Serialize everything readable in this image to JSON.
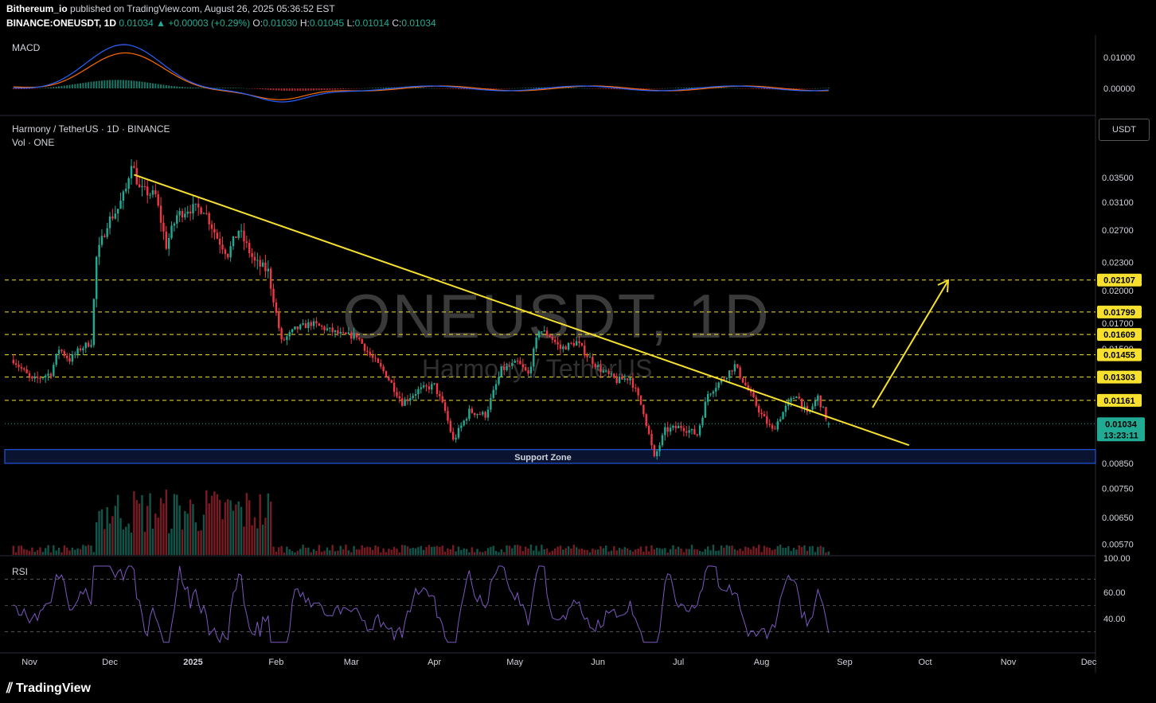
{
  "header": {
    "publisher": "Bithereum_io",
    "published_text": "published on TradingView.com, August 26, 2025 05:36:52 EST",
    "symbol": "BINANCE:ONEUSDT, 1D",
    "last": "0.01034",
    "change": "+0.00003 (+0.29%)",
    "o_label": "O:",
    "o": "0.01030",
    "h_label": "H:",
    "h": "0.01045",
    "l_label": "L:",
    "l": "0.01014",
    "c_label": "C:",
    "c": "0.01034"
  },
  "panes": {
    "macd_label": "MACD",
    "main_title": "Harmony / TetherUS · 1D · BINANCE",
    "vol_label": "Vol · ONE",
    "rsi_label": "RSI",
    "currency": "USDT"
  },
  "watermark": {
    "symbol": "ONEUSDT, 1D",
    "name": "Harmony / TetherUS"
  },
  "annotations": {
    "support_zone": "Support Zone"
  },
  "footer": {
    "brand": "TradingView"
  },
  "colors": {
    "bull": "#22ab94",
    "bear": "#f23645",
    "trendline": "#f7e12e",
    "support_band": "#1e3a8a",
    "macd": "#2962ff",
    "signal": "#ff6d00",
    "rsi": "#7e57c2"
  },
  "chart_data": {
    "type": "candlestick",
    "symbol": "ONEUSDT",
    "interval": "1D",
    "x_ticks": [
      "Nov",
      "Dec",
      "2025",
      "Feb",
      "Mar",
      "Apr",
      "May",
      "Jun",
      "Jul",
      "Aug",
      "Sep",
      "Oct",
      "Nov",
      "Dec"
    ],
    "y_ticks": [
      "0.03500",
      "0.03100",
      "0.02700",
      "0.02300",
      "0.02000",
      "0.01700",
      "0.01500",
      "0.00850",
      "0.00750",
      "0.00650",
      "0.00570"
    ],
    "macd_ticks": [
      "0.01000",
      "0.00000"
    ],
    "rsi_ticks": [
      "100.00",
      "60.00",
      "40.00"
    ],
    "resistance_levels": [
      "0.02107",
      "0.01799",
      "0.01609",
      "0.01455",
      "0.01303",
      "0.01161"
    ],
    "current_price": "0.01034",
    "countdown": "13:23:11",
    "close_path": [
      {
        "d": "2024-10-26",
        "c": 0.0142
      },
      {
        "d": "2024-11-02",
        "c": 0.0128
      },
      {
        "d": "2024-11-09",
        "c": 0.0133
      },
      {
        "d": "2024-11-12",
        "c": 0.015
      },
      {
        "d": "2024-11-16",
        "c": 0.0142
      },
      {
        "d": "2024-11-20",
        "c": 0.015
      },
      {
        "d": "2024-11-24",
        "c": 0.0155
      },
      {
        "d": "2024-11-26",
        "c": 0.0235
      },
      {
        "d": "2024-11-30",
        "c": 0.028
      },
      {
        "d": "2024-12-04",
        "c": 0.03
      },
      {
        "d": "2024-12-07",
        "c": 0.033
      },
      {
        "d": "2024-12-09",
        "c": 0.038
      },
      {
        "d": "2024-12-12",
        "c": 0.033
      },
      {
        "d": "2024-12-18",
        "c": 0.032
      },
      {
        "d": "2024-12-22",
        "c": 0.025
      },
      {
        "d": "2024-12-26",
        "c": 0.029
      },
      {
        "d": "2024-12-30",
        "c": 0.03
      },
      {
        "d": "2025-01-05",
        "c": 0.03
      },
      {
        "d": "2025-01-10",
        "c": 0.026
      },
      {
        "d": "2025-01-14",
        "c": 0.024
      },
      {
        "d": "2025-01-18",
        "c": 0.027
      },
      {
        "d": "2025-01-24",
        "c": 0.023
      },
      {
        "d": "2025-01-29",
        "c": 0.022
      },
      {
        "d": "2025-02-03",
        "c": 0.0155
      },
      {
        "d": "2025-02-08",
        "c": 0.0165
      },
      {
        "d": "2025-02-14",
        "c": 0.017
      },
      {
        "d": "2025-02-20",
        "c": 0.0165
      },
      {
        "d": "2025-02-26",
        "c": 0.016
      },
      {
        "d": "2025-03-03",
        "c": 0.016
      },
      {
        "d": "2025-03-08",
        "c": 0.0145
      },
      {
        "d": "2025-03-14",
        "c": 0.0132
      },
      {
        "d": "2025-03-20",
        "c": 0.0115
      },
      {
        "d": "2025-03-26",
        "c": 0.0122
      },
      {
        "d": "2025-04-01",
        "c": 0.0125
      },
      {
        "d": "2025-04-05",
        "c": 0.011
      },
      {
        "d": "2025-04-08",
        "c": 0.0095
      },
      {
        "d": "2025-04-14",
        "c": 0.011
      },
      {
        "d": "2025-04-20",
        "c": 0.0108
      },
      {
        "d": "2025-04-26",
        "c": 0.0135
      },
      {
        "d": "2025-05-02",
        "c": 0.014
      },
      {
        "d": "2025-05-06",
        "c": 0.0132
      },
      {
        "d": "2025-05-10",
        "c": 0.0165
      },
      {
        "d": "2025-05-14",
        "c": 0.016
      },
      {
        "d": "2025-05-18",
        "c": 0.015
      },
      {
        "d": "2025-05-24",
        "c": 0.0155
      },
      {
        "d": "2025-05-28",
        "c": 0.0145
      },
      {
        "d": "2025-06-02",
        "c": 0.0135
      },
      {
        "d": "2025-06-08",
        "c": 0.0128
      },
      {
        "d": "2025-06-13",
        "c": 0.013
      },
      {
        "d": "2025-06-18",
        "c": 0.011
      },
      {
        "d": "2025-06-22",
        "c": 0.0087
      },
      {
        "d": "2025-06-26",
        "c": 0.01
      },
      {
        "d": "2025-07-02",
        "c": 0.0102
      },
      {
        "d": "2025-07-08",
        "c": 0.0098
      },
      {
        "d": "2025-07-12",
        "c": 0.012
      },
      {
        "d": "2025-07-18",
        "c": 0.013
      },
      {
        "d": "2025-07-22",
        "c": 0.0138
      },
      {
        "d": "2025-07-26",
        "c": 0.0125
      },
      {
        "d": "2025-08-01",
        "c": 0.0108
      },
      {
        "d": "2025-08-05",
        "c": 0.01
      },
      {
        "d": "2025-08-10",
        "c": 0.0112
      },
      {
        "d": "2025-08-14",
        "c": 0.012
      },
      {
        "d": "2025-08-18",
        "c": 0.0108
      },
      {
        "d": "2025-08-22",
        "c": 0.0118
      },
      {
        "d": "2025-08-26",
        "c": 0.01034
      }
    ]
  }
}
